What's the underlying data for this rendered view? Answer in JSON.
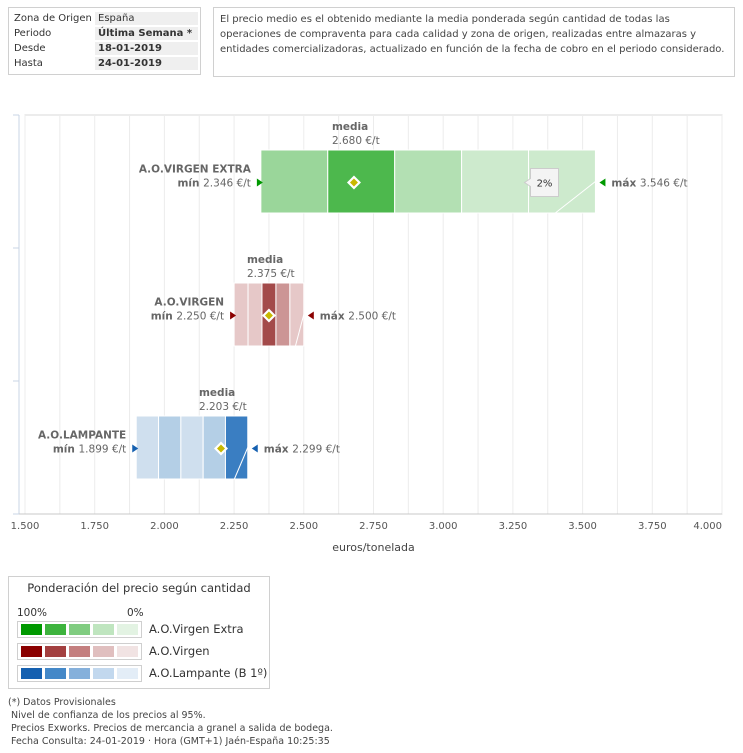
{
  "filters": {
    "rows": [
      {
        "label": "Zona de Origen",
        "value": "España",
        "bold": false
      },
      {
        "label": "Periodo",
        "value": "Última Semana *",
        "bold": true
      },
      {
        "label": "Desde",
        "value": "18-01-2019",
        "bold": true
      },
      {
        "label": "Hasta",
        "value": "24-01-2019",
        "bold": true
      }
    ]
  },
  "description": "El precio medio es el obtenido mediante la media ponderada según cantidad de todas las operaciones de compraventa para cada calidad y zona de origen, realizadas entre almazaras y entidades comercializadoras, actualizado en función de la fecha de cobro en el periodo considerado.",
  "chart_data": {
    "type": "bar",
    "orientation": "horizontal-range",
    "xlabel": "euros/tonelada",
    "xlim": [
      1.5,
      4.0
    ],
    "xticks": [
      "1.500",
      "1.750",
      "2.000",
      "2.250",
      "2.500",
      "2.750",
      "3.000",
      "3.250",
      "3.500",
      "3.750",
      "4.000"
    ],
    "xtick_values": [
      1.5,
      1.75,
      2.0,
      2.25,
      2.5,
      2.75,
      3.0,
      3.25,
      3.5,
      3.75,
      4.0
    ],
    "grid": true,
    "media_label": "media",
    "min_label": "mín",
    "max_label": "máx",
    "unit": "€/t",
    "series": [
      {
        "name": "A.O.VIRGEN EXTRA",
        "min": 2.346,
        "min_text": "2.346 €/t",
        "max": 3.546,
        "max_text": "3.546 €/t",
        "media": 2.68,
        "media_text": "2.680 €/t",
        "segment_colors": [
          "#9ad69a",
          "#4db84d",
          "#b3e0b3",
          "#cdeacd",
          "#cdeacd"
        ],
        "marker_color": "#009900",
        "tooltip": "2%"
      },
      {
        "name": "A.O.VIRGEN",
        "min": 2.25,
        "min_text": "2.250 €/t",
        "max": 2.5,
        "max_text": "2.500 €/t",
        "media": 2.375,
        "media_text": "2.375 €/t",
        "segment_colors": [
          "#e6c8c8",
          "#e6c8c8",
          "#a34a4a",
          "#cc9595",
          "#e6c8c8"
        ],
        "marker_color": "#8b0000"
      },
      {
        "name": "A.O.LAMPANTE",
        "min": 1.899,
        "min_text": "1.899 €/t",
        "max": 2.299,
        "max_text": "2.299 €/t",
        "media": 2.203,
        "media_text": "2.203 €/t",
        "segment_colors": [
          "#cfdfee",
          "#b4cfe6",
          "#cfdfee",
          "#b4cfe6",
          "#3a7ec2"
        ],
        "marker_color": "#1560b0"
      }
    ]
  },
  "legend": {
    "title": "Ponderación del precio según cantidad",
    "left_pct": "100%",
    "right_pct": "0%",
    "items": [
      {
        "label": "A.O.Virgen Extra",
        "colors": [
          "#009900",
          "#3db33d",
          "#80cc80",
          "#bfe5bf",
          "#e3f3e3"
        ]
      },
      {
        "label": "A.O.Virgen",
        "colors": [
          "#8b0000",
          "#a34040",
          "#c47f7f",
          "#e0bfbf",
          "#f1e3e3"
        ]
      },
      {
        "label": "A.O.Lampante (B 1º)",
        "colors": [
          "#1560b0",
          "#4488c8",
          "#85b0db",
          "#c2d8ee",
          "#e3edf7"
        ]
      }
    ]
  },
  "notes": [
    "(*) Datos Provisionales",
    "Nivel de confianza de los precios al 95%.",
    "Precios Exworks. Precios de mercancia a granel a salida de bodega.",
    "Fecha Consulta: 24-01-2019 · Hora (GMT+1) Jaén-España 10:25:35"
  ]
}
